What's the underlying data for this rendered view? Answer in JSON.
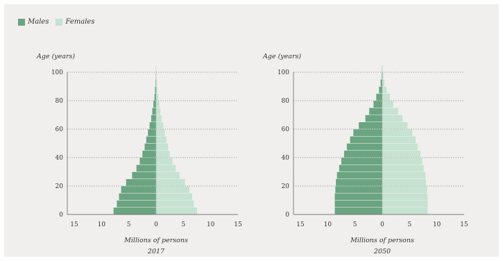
{
  "legend": {
    "males_label": "Males",
    "females_label": "Females"
  },
  "colors": {
    "males": "#6aa481",
    "females": "#c6e2d1",
    "background": "#f0efee",
    "grid": "#777777"
  },
  "chart_data": [
    {
      "type": "bar",
      "orientation": "horizontal-population-pyramid",
      "ylabel": "Age (years)",
      "xlabel": "Millions of persons",
      "year_label": "2017",
      "ylim": [
        0,
        100
      ],
      "xlim": [
        -15,
        15
      ],
      "y_ticks": [
        "0",
        "20",
        "40",
        "60",
        "80",
        "100"
      ],
      "x_ticks": [
        "15",
        "10",
        "5",
        "0",
        "5",
        "10",
        "15"
      ],
      "grid": "dotted horizontal at 20-year intervals",
      "age_groups": [
        "0-4",
        "5-9",
        "10-14",
        "15-19",
        "20-24",
        "25-29",
        "30-34",
        "35-39",
        "40-44",
        "45-49",
        "50-54",
        "55-59",
        "60-64",
        "65-69",
        "70-74",
        "75-79",
        "80-84",
        "85-89",
        "90-94",
        "95-99",
        "100+"
      ],
      "series": [
        {
          "name": "Males",
          "values": [
            7.8,
            7.2,
            6.8,
            6.4,
            5.5,
            4.4,
            3.6,
            3.0,
            2.5,
            2.1,
            1.8,
            1.5,
            1.2,
            0.9,
            0.7,
            0.5,
            0.3,
            0.2,
            0.1,
            0.05,
            0.02
          ]
        },
        {
          "name": "Females",
          "values": [
            7.5,
            6.9,
            6.6,
            6.1,
            5.3,
            4.3,
            3.6,
            3.0,
            2.5,
            2.2,
            1.9,
            1.6,
            1.3,
            1.0,
            0.8,
            0.6,
            0.4,
            0.25,
            0.12,
            0.05,
            0.02
          ]
        }
      ]
    },
    {
      "type": "bar",
      "orientation": "horizontal-population-pyramid",
      "ylabel": "Age (years)",
      "xlabel": "Millions of persons",
      "year_label": "2050",
      "ylim": [
        0,
        100
      ],
      "xlim": [
        -15,
        15
      ],
      "y_ticks": [
        "0",
        "20",
        "40",
        "60",
        "80",
        "100"
      ],
      "x_ticks": [
        "15",
        "10",
        "5",
        "0",
        "5",
        "10",
        "15"
      ],
      "grid": "dotted horizontal at 20-year intervals",
      "age_groups": [
        "0-4",
        "5-9",
        "10-14",
        "15-19",
        "20-24",
        "25-29",
        "30-34",
        "35-39",
        "40-44",
        "45-49",
        "50-54",
        "55-59",
        "60-64",
        "65-69",
        "70-74",
        "75-79",
        "80-84",
        "85-89",
        "90-94",
        "95-99",
        "100+"
      ],
      "series": [
        {
          "name": "Males",
          "values": [
            8.7,
            8.7,
            8.7,
            8.6,
            8.5,
            8.3,
            7.9,
            7.5,
            7.0,
            6.5,
            5.9,
            5.3,
            4.3,
            3.1,
            2.4,
            1.6,
            1.1,
            0.6,
            0.3,
            0.1,
            0.04
          ]
        },
        {
          "name": "Females",
          "values": [
            8.3,
            8.3,
            8.3,
            8.2,
            8.0,
            7.9,
            7.6,
            7.3,
            7.0,
            6.5,
            6.1,
            5.5,
            4.6,
            3.7,
            2.9,
            2.0,
            1.4,
            0.8,
            0.4,
            0.2,
            0.06
          ]
        }
      ]
    }
  ]
}
